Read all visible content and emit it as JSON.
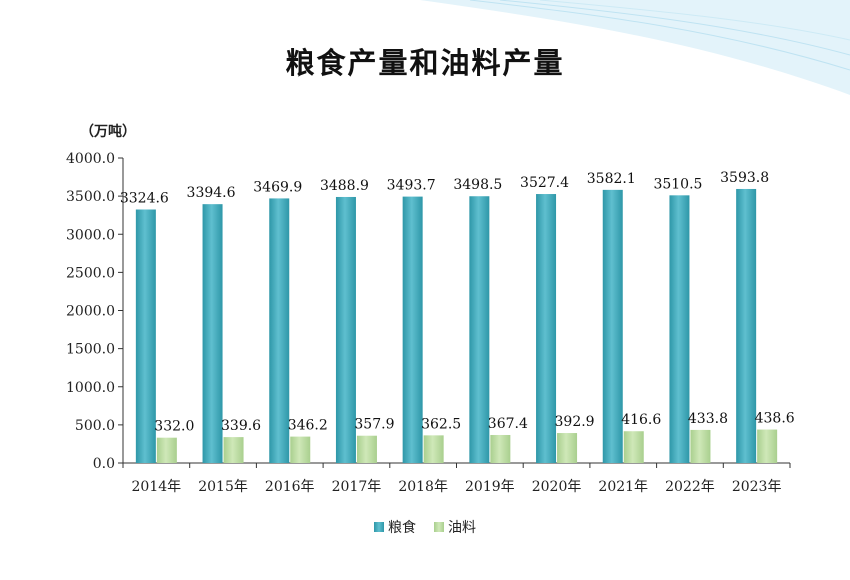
{
  "colors": {
    "grain": "#5fbfcf",
    "grain_edge": "#2e97a8",
    "oil": "#cfe8b8",
    "oil_edge": "#a9cf8e",
    "deco": "#bfe3f2"
  },
  "chart_data": {
    "type": "bar",
    "title": "粮食产量和油料产量",
    "unit": "（万吨）",
    "categories": [
      "2014年",
      "2015年",
      "2016年",
      "2017年",
      "2018年",
      "2019年",
      "2020年",
      "2021年",
      "2022年",
      "2023年"
    ],
    "series": [
      {
        "name": "粮食",
        "values": [
          3324.6,
          3394.6,
          3469.9,
          3488.9,
          3493.7,
          3498.5,
          3527.4,
          3582.1,
          3510.5,
          3593.8
        ]
      },
      {
        "name": "油料",
        "values": [
          332.0,
          339.6,
          346.2,
          357.9,
          362.5,
          367.4,
          392.9,
          416.6,
          433.8,
          438.6
        ]
      }
    ],
    "yticks": [
      "0.0",
      "500.0",
      "1000.0",
      "1500.0",
      "2000.0",
      "2500.0",
      "3000.0",
      "3500.0",
      "4000.0"
    ],
    "ylim": [
      0,
      4000
    ],
    "grid": false,
    "legend": "bottom-center"
  }
}
